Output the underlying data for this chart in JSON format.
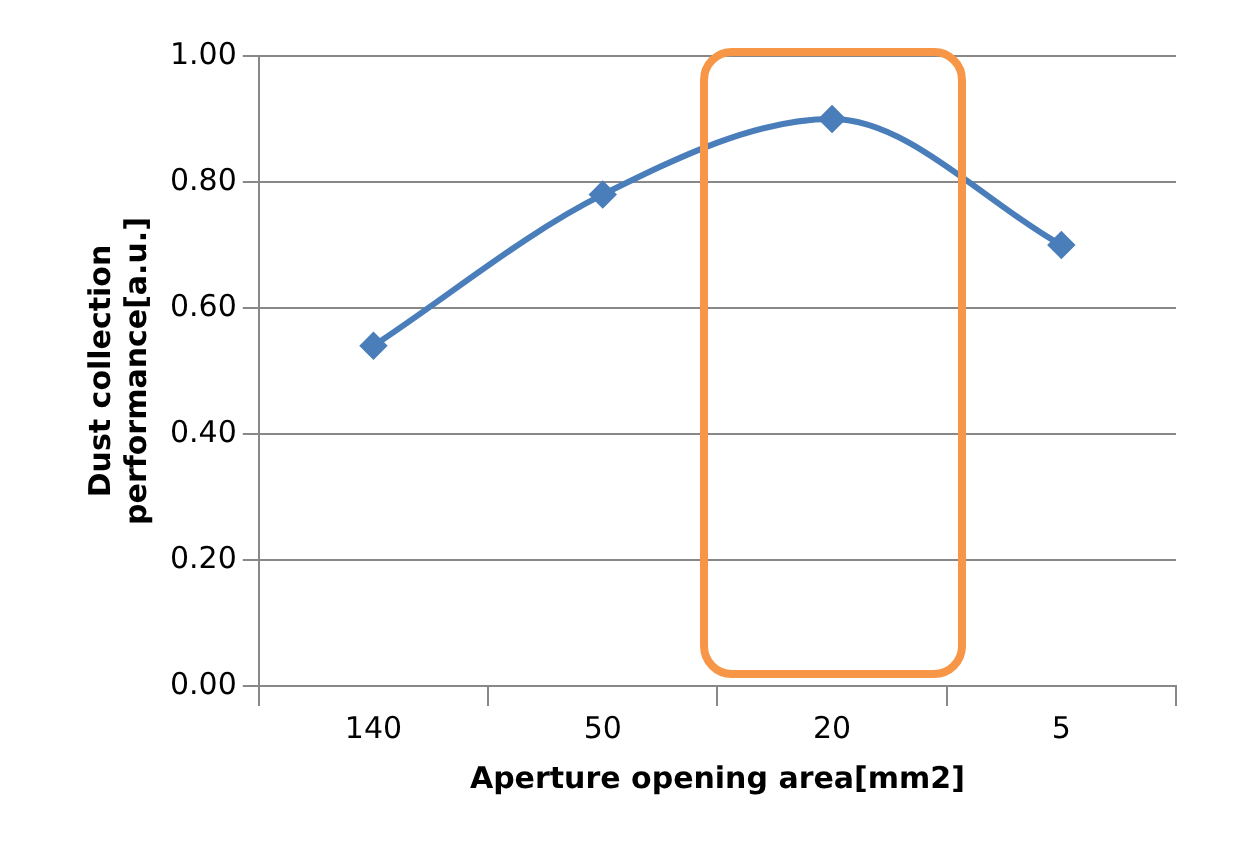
{
  "chart_data": {
    "type": "line",
    "xlabel": "Aperture opening area[mm2]",
    "ylabel": "Dust collection\nperformance[a.u.]",
    "categories": [
      "140",
      "50",
      "20",
      "5"
    ],
    "series": [
      {
        "color": "#4a7ebb",
        "values": [
          0.54,
          0.78,
          0.9,
          0.7
        ]
      }
    ],
    "ylim": [
      0,
      1
    ],
    "yticks": [
      {
        "value": 0,
        "label": "0.00"
      },
      {
        "value": 0.2,
        "label": "0.20"
      },
      {
        "value": 0.4,
        "label": "0.40"
      },
      {
        "value": 0.6,
        "label": "0.60"
      },
      {
        "value": 0.8,
        "label": "0.80"
      },
      {
        "value": 1,
        "label": "1.00"
      }
    ],
    "grid": "y",
    "marker": "diamond",
    "line_style": "solid",
    "legend": false
  }
}
